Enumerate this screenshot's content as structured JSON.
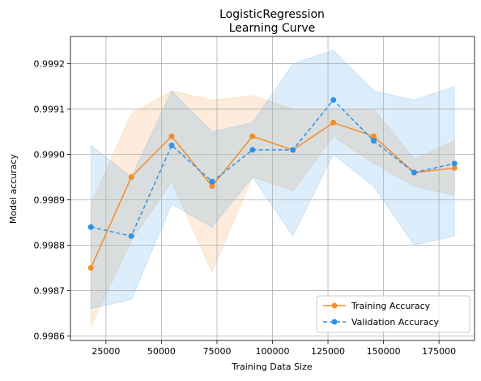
{
  "chart_data": {
    "type": "line",
    "title": [
      "LogisticRegression",
      "Learning Curve"
    ],
    "xlabel": "Training Data Size",
    "ylabel": "Model accuracy",
    "xlim": [
      9000,
      191000
    ],
    "ylim": [
      0.99859,
      0.99926
    ],
    "xticks": [
      25000,
      50000,
      75000,
      100000,
      125000,
      150000,
      175000
    ],
    "xtick_labels": [
      "25000",
      "50000",
      "75000",
      "100000",
      "125000",
      "150000",
      "175000"
    ],
    "yticks": [
      0.9986,
      0.9987,
      0.9988,
      0.9989,
      0.999,
      0.9991,
      0.9992
    ],
    "ytick_labels": [
      "0.9986",
      "0.9987",
      "0.9988",
      "0.9989",
      "0.9990",
      "0.9991",
      "0.9992"
    ],
    "grid": true,
    "legend_position": "lower-right",
    "x": [
      18200,
      36400,
      54600,
      72800,
      91000,
      109200,
      127400,
      145600,
      163800,
      182000
    ],
    "series": [
      {
        "name": "Training Accuracy",
        "color": "#f28e2b",
        "linestyle": "solid",
        "values": [
          0.99875,
          0.99895,
          0.99904,
          0.99893,
          0.99904,
          0.99901,
          0.99907,
          0.99904,
          0.99896,
          0.99897
        ],
        "upper": [
          0.99889,
          0.99909,
          0.99914,
          0.99912,
          0.99913,
          0.9991,
          0.9991,
          0.9991,
          0.99899,
          0.99903
        ],
        "lower": [
          0.99862,
          0.99881,
          0.99894,
          0.99874,
          0.99895,
          0.99892,
          0.99904,
          0.99898,
          0.99893,
          0.99891
        ]
      },
      {
        "name": "Validation Accuracy",
        "color": "#2e93e8",
        "linestyle": "dashed",
        "values": [
          0.99884,
          0.99882,
          0.99902,
          0.99894,
          0.99901,
          0.99901,
          0.99912,
          0.99903,
          0.99896,
          0.99898
        ],
        "upper": [
          0.99902,
          0.99895,
          0.99914,
          0.99905,
          0.99907,
          0.9992,
          0.99923,
          0.99914,
          0.99912,
          0.99915
        ],
        "lower": [
          0.99866,
          0.99868,
          0.99889,
          0.99884,
          0.99895,
          0.99882,
          0.999,
          0.99893,
          0.9988,
          0.99882
        ]
      }
    ]
  }
}
